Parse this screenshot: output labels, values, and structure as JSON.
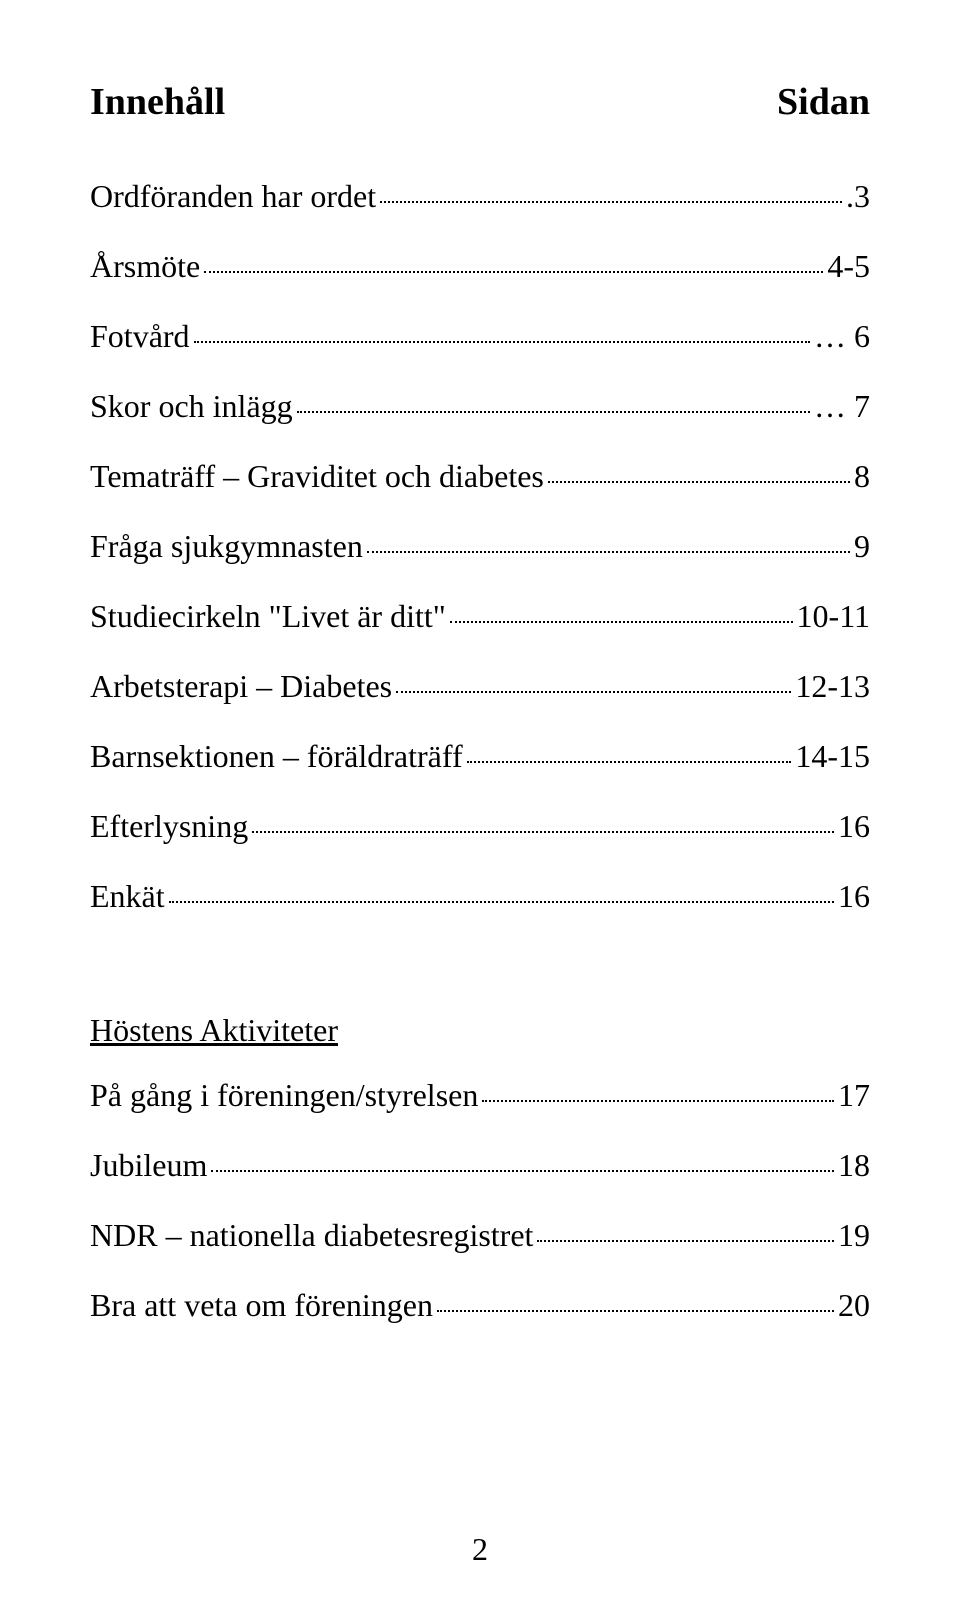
{
  "header": {
    "left": "Innehåll",
    "right": "Sidan"
  },
  "toc_main": [
    {
      "label": "Ordföranden har ordet",
      "page": ".3"
    },
    {
      "label": "Årsmöte",
      "page": "4-5"
    },
    {
      "label": "Fotvård",
      "page": "… 6"
    },
    {
      "label": "Skor och inlägg",
      "page": "… 7"
    },
    {
      "label": "Tematräff – Graviditet och diabetes",
      "page": "8"
    },
    {
      "label": "Fråga sjukgymnasten",
      "page": "9"
    },
    {
      "label": "Studiecirkeln \"Livet är ditt\"",
      "page": "10-11"
    },
    {
      "label": "Arbetsterapi – Diabetes",
      "page": "12-13"
    },
    {
      "label": "Barnsektionen – föräldraträff",
      "page": "14-15"
    },
    {
      "label": "Efterlysning",
      "page": "16"
    },
    {
      "label": "Enkät",
      "page": "16"
    }
  ],
  "section2": {
    "heading": "Höstens  Aktiviteter",
    "items": [
      {
        "label": "På gång i föreningen/styrelsen",
        "page": "17"
      },
      {
        "label": "Jubileum",
        "page": "18"
      },
      {
        "label": "NDR – nationella diabetesregistret",
        "page": "19"
      },
      {
        "label": "Bra att veta om föreningen",
        "page": "20"
      }
    ]
  },
  "page_number": "2"
}
